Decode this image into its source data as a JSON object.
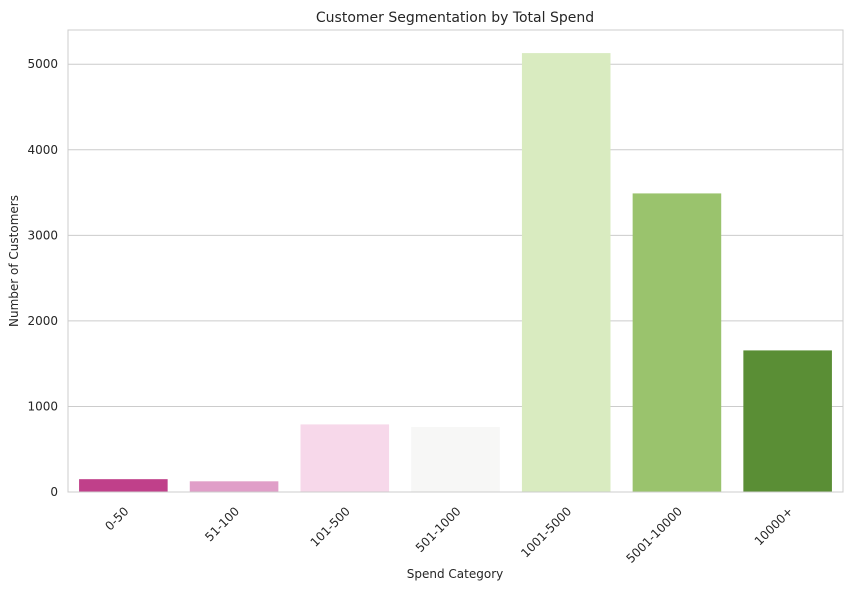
{
  "chart_data": {
    "type": "bar",
    "title": "Customer Segmentation by Total Spend",
    "xlabel": "Spend Category",
    "ylabel": "Number of Customers",
    "categories": [
      "0-50",
      "51-100",
      "101-500",
      "501-1000",
      "1001-5000",
      "5001-10000",
      "10000+"
    ],
    "values": [
      150,
      125,
      790,
      760,
      5130,
      3490,
      1655
    ],
    "colors": [
      "#c0408a",
      "#e09ec8",
      "#f7d8ea",
      "#f7f7f6",
      "#d9ebc0",
      "#9ac36d",
      "#5a8e35"
    ],
    "ylim": [
      0,
      5400
    ],
    "yticks": [
      0,
      1000,
      2000,
      3000,
      4000,
      5000
    ],
    "grid": "horizontal",
    "x_tick_rotation": 45
  }
}
